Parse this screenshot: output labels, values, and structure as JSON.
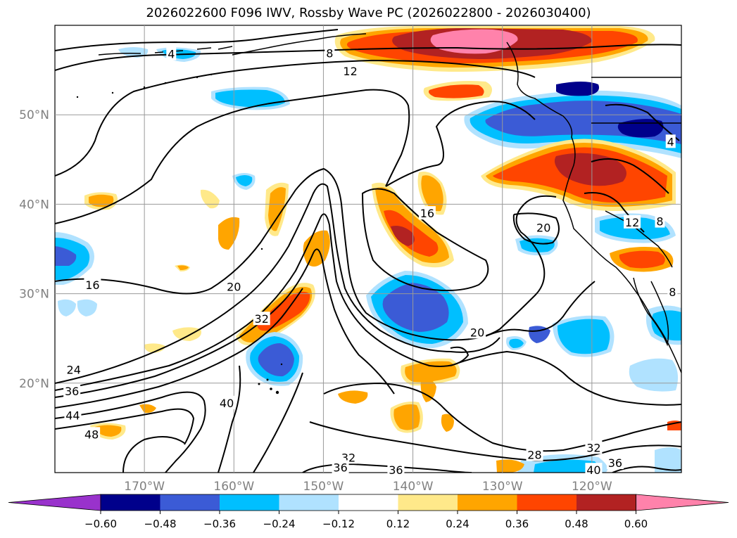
{
  "title": "2026022600 F096 IWV, Rossby Wave PC (2026022800 - 2026030400)",
  "map": {
    "lat_labels": [
      {
        "text": "50°N",
        "lat": 50
      },
      {
        "text": "40°N",
        "lat": 40
      },
      {
        "text": "30°N",
        "lat": 30
      },
      {
        "text": "20°N",
        "lat": 20
      }
    ],
    "lon_labels": [
      {
        "text": "170°W",
        "lon": -170
      },
      {
        "text": "160°W",
        "lon": -160
      },
      {
        "text": "150°W",
        "lon": -150
      },
      {
        "text": "140°W",
        "lon": -140
      },
      {
        "text": "130°W",
        "lon": -130
      },
      {
        "text": "120°W",
        "lon": -120
      }
    ],
    "extent": {
      "lon_min": -180,
      "lon_max": -110,
      "lat_min": 10,
      "lat_max": 60
    },
    "grid": true
  },
  "contour_labels": [
    {
      "text": "4",
      "lon": -167,
      "lat": 56.8
    },
    {
      "text": "8",
      "lon": -149.3,
      "lat": 56.9
    },
    {
      "text": "12",
      "lon": -147,
      "lat": 54.9
    },
    {
      "text": "16",
      "lon": -175.8,
      "lat": 31
    },
    {
      "text": "20",
      "lon": -160,
      "lat": 30.8
    },
    {
      "text": "16",
      "lon": -138.4,
      "lat": 39
    },
    {
      "text": "20",
      "lon": -125.4,
      "lat": 37.4
    },
    {
      "text": "4",
      "lon": -111.2,
      "lat": 47
    },
    {
      "text": "8",
      "lon": -112.4,
      "lat": 38.1
    },
    {
      "text": "12",
      "lon": -115.5,
      "lat": 38
    },
    {
      "text": "8",
      "lon": -111,
      "lat": 30.2
    },
    {
      "text": "32",
      "lon": -156.9,
      "lat": 27.2
    },
    {
      "text": "20",
      "lon": -132.8,
      "lat": 25.7
    },
    {
      "text": "24",
      "lon": -177.9,
      "lat": 21.5
    },
    {
      "text": "36",
      "lon": -178.1,
      "lat": 19.1
    },
    {
      "text": "44",
      "lon": -178,
      "lat": 16.4
    },
    {
      "text": "40",
      "lon": -160.8,
      "lat": 17.8
    },
    {
      "text": "48",
      "lon": -175.9,
      "lat": 14.3
    },
    {
      "text": "32",
      "lon": -147.2,
      "lat": 11.7
    },
    {
      "text": "36",
      "lon": -148.1,
      "lat": 10.6
    },
    {
      "text": "36",
      "lon": -141.9,
      "lat": 10.3
    },
    {
      "text": "28",
      "lon": -126.4,
      "lat": 12
    },
    {
      "text": "32",
      "lon": -119.8,
      "lat": 12.8
    },
    {
      "text": "36",
      "lon": -117.4,
      "lat": 11.1
    },
    {
      "text": "40",
      "lon": -119.8,
      "lat": 10.3
    }
  ],
  "colorbar": {
    "ticks": [
      "−0.60",
      "−0.48",
      "−0.36",
      "−0.24",
      "−0.12",
      "0.12",
      "0.24",
      "0.36",
      "0.48",
      "0.60"
    ],
    "colors": [
      "#9932cc",
      "#00008b",
      "#3b5bd6",
      "#00bfff",
      "#b0e2ff",
      "#ffffff",
      "#ffe98a",
      "#ffa500",
      "#ff4500",
      "#b22222",
      "#ff82ab"
    ]
  },
  "colors": {
    "dark_blue": "#00008b",
    "mid_blue": "#3b5bd6",
    "cyan": "#00bfff",
    "light_blue": "#b0e2ff",
    "yellow": "#ffe98a",
    "orange": "#ffa500",
    "red_orange": "#ff4500",
    "dark_red": "#b22222",
    "pink": "#ff82ab"
  }
}
